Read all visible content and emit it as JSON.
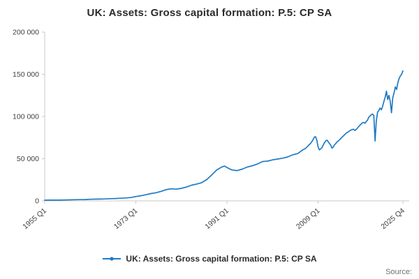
{
  "title": "UK: Assets: Gross capital formation: P.5: CP SA",
  "legend": {
    "label": "UK: Assets: Gross capital formation: P.5: CP SA"
  },
  "source_label": "Source:",
  "colors": {
    "line": "#1f7ac4",
    "axis": "#c8c8c8",
    "tick_text": "#404040"
  },
  "chart_data": {
    "type": "line",
    "title": "UK: Assets: Gross capital formation: P.5: CP SA",
    "xlabel": "",
    "ylabel": "",
    "ylim": [
      0,
      200000
    ],
    "xlim": [
      1955,
      2027
    ],
    "grid": false,
    "legend_position": "bottom",
    "y_ticks": [
      {
        "value": 0,
        "label": "0"
      },
      {
        "value": 50000,
        "label": "50 000"
      },
      {
        "value": 100000,
        "label": "100 000"
      },
      {
        "value": 150000,
        "label": "150 000"
      },
      {
        "value": 200000,
        "label": "200 000"
      }
    ],
    "x_ticks": [
      {
        "value": 1955.0,
        "label": "1955 Q1"
      },
      {
        "value": 1973.0,
        "label": "1973 Q1"
      },
      {
        "value": 1991.0,
        "label": "1991 Q1"
      },
      {
        "value": 2009.0,
        "label": "2009 Q1"
      },
      {
        "value": 2025.75,
        "label": "2025 Q4"
      }
    ],
    "series": [
      {
        "name": "UK: Assets: Gross capital formation: P.5: CP SA",
        "points": [
          [
            1955,
            800
          ],
          [
            1956,
            900
          ],
          [
            1957,
            950
          ],
          [
            1958,
            950
          ],
          [
            1959,
            1050
          ],
          [
            1960,
            1250
          ],
          [
            1961,
            1400
          ],
          [
            1962,
            1450
          ],
          [
            1963,
            1550
          ],
          [
            1964,
            1900
          ],
          [
            1965,
            2050
          ],
          [
            1966,
            2150
          ],
          [
            1967,
            2350
          ],
          [
            1968,
            2650
          ],
          [
            1969,
            2800
          ],
          [
            1970,
            3150
          ],
          [
            1971,
            3500
          ],
          [
            1972,
            4000
          ],
          [
            1973,
            5100
          ],
          [
            1974,
            6100
          ],
          [
            1975,
            7300
          ],
          [
            1976,
            8700
          ],
          [
            1977,
            9700
          ],
          [
            1978,
            11300
          ],
          [
            1979,
            13300
          ],
          [
            1980,
            14300
          ],
          [
            1981,
            13900
          ],
          [
            1982,
            14900
          ],
          [
            1983,
            16400
          ],
          [
            1984,
            18600
          ],
          [
            1985,
            19900
          ],
          [
            1986,
            21600
          ],
          [
            1987,
            25200
          ],
          [
            1988,
            30800
          ],
          [
            1989,
            36800
          ],
          [
            1990,
            40200
          ],
          [
            1990.5,
            41200
          ],
          [
            1991,
            39600
          ],
          [
            1991.5,
            38000
          ],
          [
            1992,
            36600
          ],
          [
            1993,
            35900
          ],
          [
            1994,
            37600
          ],
          [
            1995,
            40100
          ],
          [
            1996,
            41600
          ],
          [
            1997,
            43600
          ],
          [
            1998,
            46600
          ],
          [
            1999,
            47100
          ],
          [
            2000,
            48600
          ],
          [
            2001,
            49600
          ],
          [
            2002,
            50600
          ],
          [
            2003,
            52100
          ],
          [
            2004,
            54600
          ],
          [
            2005,
            56100
          ],
          [
            2006,
            60600
          ],
          [
            2006.5,
            62100
          ],
          [
            2007,
            65000
          ],
          [
            2007.25,
            66500
          ],
          [
            2007.5,
            68000
          ],
          [
            2007.75,
            70000
          ],
          [
            2008,
            72500
          ],
          [
            2008.25,
            75500
          ],
          [
            2008.5,
            76000
          ],
          [
            2008.75,
            72000
          ],
          [
            2009,
            64000
          ],
          [
            2009.25,
            60500
          ],
          [
            2009.5,
            61500
          ],
          [
            2009.75,
            63000
          ],
          [
            2010,
            66000
          ],
          [
            2010.25,
            69000
          ],
          [
            2010.5,
            71000
          ],
          [
            2010.75,
            72000
          ],
          [
            2011,
            70000
          ],
          [
            2011.25,
            68000
          ],
          [
            2011.5,
            66000
          ],
          [
            2011.75,
            62500
          ],
          [
            2012,
            64000
          ],
          [
            2012.25,
            66500
          ],
          [
            2012.5,
            68000
          ],
          [
            2012.75,
            70000
          ],
          [
            2013,
            71000
          ],
          [
            2013.25,
            72500
          ],
          [
            2013.5,
            74000
          ],
          [
            2013.75,
            75500
          ],
          [
            2014,
            77000
          ],
          [
            2014.25,
            78500
          ],
          [
            2014.5,
            80000
          ],
          [
            2014.75,
            81000
          ],
          [
            2015,
            82000
          ],
          [
            2015.25,
            83000
          ],
          [
            2015.5,
            84000
          ],
          [
            2015.75,
            84500
          ],
          [
            2016,
            85000
          ],
          [
            2016.25,
            83500
          ],
          [
            2016.5,
            84500
          ],
          [
            2016.75,
            86000
          ],
          [
            2017,
            88000
          ],
          [
            2017.25,
            89500
          ],
          [
            2017.5,
            91000
          ],
          [
            2017.75,
            92500
          ],
          [
            2018,
            93000
          ],
          [
            2018.25,
            92000
          ],
          [
            2018.5,
            94000
          ],
          [
            2018.75,
            95500
          ],
          [
            2019,
            99000
          ],
          [
            2019.25,
            100500
          ],
          [
            2019.5,
            102000
          ],
          [
            2019.75,
            103000
          ],
          [
            2020,
            101000
          ],
          [
            2020.25,
            71000
          ],
          [
            2020.5,
            95000
          ],
          [
            2020.75,
            105000
          ],
          [
            2021,
            107000
          ],
          [
            2021.25,
            110000
          ],
          [
            2021.5,
            108000
          ],
          [
            2021.75,
            112000
          ],
          [
            2022,
            118000
          ],
          [
            2022.25,
            123000
          ],
          [
            2022.5,
            130000
          ],
          [
            2022.75,
            120000
          ],
          [
            2023,
            125000
          ],
          [
            2023.25,
            118000
          ],
          [
            2023.5,
            104500
          ],
          [
            2023.75,
            122000
          ],
          [
            2024,
            128000
          ],
          [
            2024.25,
            135000
          ],
          [
            2024.5,
            132000
          ],
          [
            2024.75,
            140000
          ],
          [
            2025,
            145000
          ],
          [
            2025.25,
            148000
          ],
          [
            2025.5,
            150000
          ],
          [
            2025.75,
            154000
          ]
        ]
      }
    ]
  }
}
